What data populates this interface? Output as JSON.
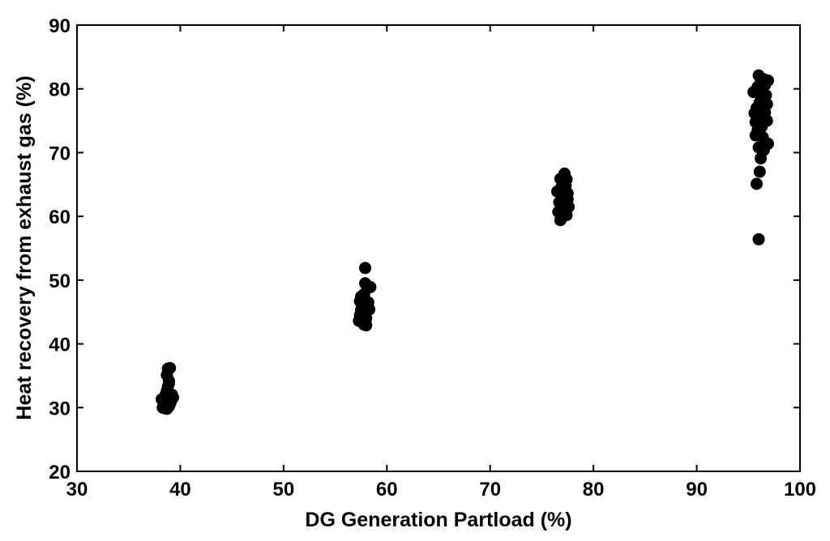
{
  "chart_data": {
    "type": "scatter",
    "title": "",
    "xlabel": "DG Generation Partload (%)",
    "ylabel": "Heat recovery from exhaust gas (%)",
    "xlim": [
      30,
      100
    ],
    "ylim": [
      20,
      90
    ],
    "xticks": [
      "30",
      "40",
      "50",
      "60",
      "70",
      "80",
      "90",
      "100"
    ],
    "yticks": [
      "20",
      "30",
      "40",
      "50",
      "60",
      "70",
      "80",
      "90"
    ],
    "grid": false,
    "marker_color": "#000000",
    "points": [
      [
        38.2,
        31.3
      ],
      [
        38.4,
        30.5
      ],
      [
        38.5,
        29.9
      ],
      [
        38.6,
        31.8
      ],
      [
        38.7,
        32.6
      ],
      [
        38.8,
        33.3
      ],
      [
        38.9,
        34.2
      ],
      [
        38.7,
        35.1
      ],
      [
        38.8,
        36.1
      ],
      [
        39.0,
        36.2
      ],
      [
        38.9,
        30.2
      ],
      [
        39.1,
        31.0
      ],
      [
        39.2,
        32.0
      ],
      [
        39.3,
        31.6
      ],
      [
        38.5,
        30.8
      ],
      [
        38.6,
        32.1
      ],
      [
        38.9,
        33.8
      ],
      [
        39.0,
        30.6
      ],
      [
        38.3,
        30.0
      ],
      [
        38.7,
        29.8
      ],
      [
        57.3,
        43.6
      ],
      [
        57.4,
        44.5
      ],
      [
        57.5,
        45.3
      ],
      [
        57.6,
        46.2
      ],
      [
        57.7,
        47.0
      ],
      [
        57.8,
        47.8
      ],
      [
        57.9,
        49.5
      ],
      [
        57.9,
        51.9
      ],
      [
        58.4,
        48.9
      ],
      [
        58.3,
        45.4
      ],
      [
        57.8,
        43.0
      ],
      [
        58.0,
        44.0
      ],
      [
        58.1,
        45.9
      ],
      [
        57.4,
        46.7
      ],
      [
        57.6,
        44.9
      ],
      [
        58.2,
        46.5
      ],
      [
        57.9,
        43.4
      ],
      [
        57.5,
        47.4
      ],
      [
        58.0,
        42.9
      ],
      [
        57.7,
        45.1
      ],
      [
        76.5,
        63.9
      ],
      [
        76.6,
        60.7
      ],
      [
        76.8,
        59.4
      ],
      [
        76.9,
        61.5
      ],
      [
        77.0,
        62.6
      ],
      [
        77.1,
        63.3
      ],
      [
        77.2,
        64.0
      ],
      [
        77.3,
        64.8
      ],
      [
        77.2,
        66.7
      ],
      [
        76.8,
        65.9
      ],
      [
        77.4,
        65.8
      ],
      [
        77.5,
        63.6
      ],
      [
        77.6,
        61.5
      ],
      [
        77.4,
        60.2
      ],
      [
        77.0,
        61.0
      ],
      [
        76.9,
        64.6
      ],
      [
        77.3,
        62.0
      ],
      [
        77.1,
        60.4
      ],
      [
        77.5,
        62.7
      ],
      [
        76.7,
        62.2
      ],
      [
        96.0,
        56.4
      ],
      [
        95.8,
        65.1
      ],
      [
        96.1,
        67.0
      ],
      [
        96.2,
        69.1
      ],
      [
        96.0,
        70.8
      ],
      [
        96.5,
        70.4
      ],
      [
        96.9,
        71.4
      ],
      [
        95.7,
        72.7
      ],
      [
        95.9,
        73.5
      ],
      [
        96.3,
        74.1
      ],
      [
        96.8,
        75.0
      ],
      [
        95.6,
        76.2
      ],
      [
        95.8,
        77.0
      ],
      [
        96.1,
        77.9
      ],
      [
        96.4,
        78.7
      ],
      [
        96.7,
        79.0
      ],
      [
        95.5,
        79.5
      ],
      [
        95.9,
        80.3
      ],
      [
        96.2,
        81.0
      ],
      [
        96.5,
        81.5
      ],
      [
        96.9,
        81.3
      ],
      [
        96.0,
        82.1
      ],
      [
        96.6,
        76.3
      ],
      [
        96.3,
        75.5
      ],
      [
        95.7,
        74.8
      ],
      [
        96.4,
        72.4
      ],
      [
        96.1,
        73.6
      ],
      [
        96.8,
        77.6
      ],
      [
        96.2,
        80.1
      ],
      [
        96.6,
        80.6
      ]
    ]
  }
}
